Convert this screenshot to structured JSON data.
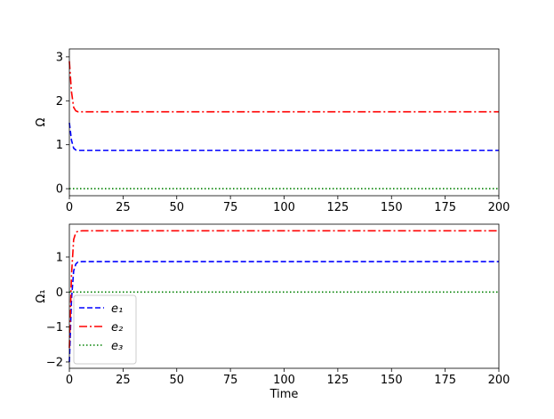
{
  "chart_data": [
    {
      "type": "line",
      "ylabel": "Ω",
      "x": [
        0,
        1,
        2,
        3,
        4,
        6,
        10,
        200
      ],
      "xlim": [
        0,
        200
      ],
      "xticks": [
        0,
        25,
        50,
        75,
        100,
        125,
        150,
        175,
        200
      ],
      "ylim": [
        -0.16,
        3.18
      ],
      "yticks": [
        0,
        1,
        2,
        3
      ],
      "series": [
        {
          "name": "e₁",
          "color": "#0000ff",
          "linestyle": "dashed",
          "values": [
            1.5,
            1.1,
            0.92,
            0.88,
            0.87,
            0.87,
            0.87,
            0.87
          ]
        },
        {
          "name": "e₂",
          "color": "#ff0000",
          "linestyle": "dashdot",
          "values": [
            2.9,
            2.2,
            1.85,
            1.77,
            1.75,
            1.75,
            1.75,
            1.75
          ]
        },
        {
          "name": "e₃",
          "color": "#008000",
          "linestyle": "dotted",
          "values": [
            0,
            0,
            0,
            0,
            0,
            0,
            0,
            0
          ]
        }
      ]
    },
    {
      "type": "line",
      "ylabel": "Ω₁",
      "xlabel": "Time",
      "x": [
        0,
        1,
        2,
        3,
        4,
        6,
        10,
        200
      ],
      "xlim": [
        0,
        200
      ],
      "xticks": [
        0,
        25,
        50,
        75,
        100,
        125,
        150,
        175,
        200
      ],
      "ylim": [
        -2.18,
        1.94
      ],
      "yticks": [
        {
          "value": -2,
          "label": "−2"
        },
        {
          "value": -1,
          "label": "−1"
        },
        0,
        1
      ],
      "legend": "lower left",
      "series": [
        {
          "name": "e₁",
          "color": "#0000ff",
          "linestyle": "dashed",
          "values": [
            -2.0,
            -0.2,
            0.6,
            0.8,
            0.86,
            0.87,
            0.87,
            0.87
          ]
        },
        {
          "name": "e₂",
          "color": "#ff0000",
          "linestyle": "dashdot",
          "values": [
            -1.6,
            0.5,
            1.5,
            1.7,
            1.74,
            1.75,
            1.75,
            1.75
          ]
        },
        {
          "name": "e₃",
          "color": "#008000",
          "linestyle": "dotted",
          "values": [
            0,
            0,
            0,
            0,
            0,
            0,
            0,
            0
          ]
        }
      ]
    }
  ]
}
